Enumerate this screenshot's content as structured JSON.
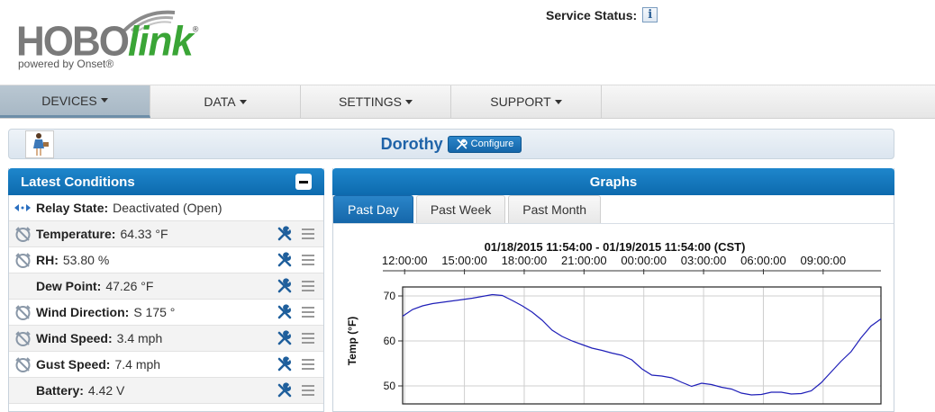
{
  "logo": {
    "hobo": "HOBO",
    "link": "link",
    "reg": "®",
    "tagline": "powered by Onset®"
  },
  "service_status": {
    "label": "Service Status:",
    "icon": "info-icon",
    "icon_glyph": "i"
  },
  "nav": [
    {
      "label": "DEVICES",
      "active": true
    },
    {
      "label": "DATA",
      "active": false
    },
    {
      "label": "SETTINGS",
      "active": false
    },
    {
      "label": "SUPPORT",
      "active": false
    }
  ],
  "device": {
    "name": "Dorothy",
    "configure_label": "Configure"
  },
  "conditions": {
    "title": "Latest Conditions",
    "rows": [
      {
        "label": "Relay State:",
        "value": "Deactivated (Open)",
        "icon": "relay-arrows-icon",
        "tools": false
      },
      {
        "label": "Temperature:",
        "value": "64.33 °F",
        "icon": "alarm-off-icon",
        "tools": true
      },
      {
        "label": "RH:",
        "value": "53.80 %",
        "icon": "alarm-off-icon",
        "tools": true
      },
      {
        "label": "Dew Point:",
        "value": "47.26 °F",
        "icon": "",
        "tools": true
      },
      {
        "label": "Wind Direction:",
        "value": "S 175 °",
        "icon": "alarm-off-icon",
        "tools": true
      },
      {
        "label": "Wind Speed:",
        "value": "3.4 mph",
        "icon": "alarm-off-icon",
        "tools": true
      },
      {
        "label": "Gust Speed:",
        "value": "7.4 mph",
        "icon": "alarm-off-icon",
        "tools": true
      },
      {
        "label": "Battery:",
        "value": "4.42 V",
        "icon": "",
        "tools": true
      }
    ]
  },
  "graphs": {
    "title": "Graphs",
    "tabs": [
      {
        "label": "Past Day",
        "active": true
      },
      {
        "label": "Past Week",
        "active": false
      },
      {
        "label": "Past Month",
        "active": false
      }
    ]
  },
  "chart_data": {
    "type": "line",
    "title": "01/18/2015 11:54:00  -  01/19/2015 11:54:00 (CST)",
    "xlabel": "",
    "ylabel": "Temp (°F)",
    "x_tick_labels": [
      "12:00:00",
      "15:00:00",
      "18:00:00",
      "21:00:00",
      "00:00:00",
      "03:00:00",
      "06:00:00",
      "09:00:00"
    ],
    "x_tick_hours": [
      0.1,
      3.1,
      6.1,
      9.1,
      12.1,
      15.1,
      18.1,
      21.1
    ],
    "xlim_hours": [
      0,
      24
    ],
    "y_ticks": [
      50,
      60,
      70
    ],
    "ylim": [
      46,
      72
    ],
    "grid": true,
    "series": [
      {
        "color": "#1f1fb8",
        "x_hours": [
          0,
          0.5,
          1,
          1.5,
          2,
          2.5,
          3,
          3.5,
          4,
          4.5,
          5,
          5.5,
          6,
          6.5,
          7,
          7.5,
          8,
          8.5,
          9,
          9.5,
          10,
          10.5,
          11,
          11.5,
          12,
          12.5,
          13,
          13.5,
          14,
          14.5,
          15,
          15.5,
          16,
          16.5,
          17,
          17.5,
          18,
          18.5,
          19,
          19.5,
          20,
          20.5,
          21,
          21.5,
          22,
          22.5,
          23,
          23.5,
          24
        ],
        "values": [
          65.5,
          67.0,
          67.8,
          68.3,
          68.6,
          68.9,
          69.2,
          69.5,
          69.9,
          70.3,
          70.1,
          69.0,
          67.8,
          66.4,
          64.6,
          62.4,
          61.0,
          60.0,
          59.2,
          58.4,
          57.9,
          57.3,
          56.8,
          55.8,
          53.8,
          52.4,
          52.2,
          51.8,
          50.8,
          49.9,
          50.6,
          50.3,
          49.7,
          49.3,
          48.4,
          48.0,
          48.1,
          48.6,
          48.6,
          48.2,
          48.3,
          48.9,
          50.7,
          53.1,
          55.5,
          57.6,
          60.7,
          63.3,
          64.9
        ]
      }
    ]
  }
}
